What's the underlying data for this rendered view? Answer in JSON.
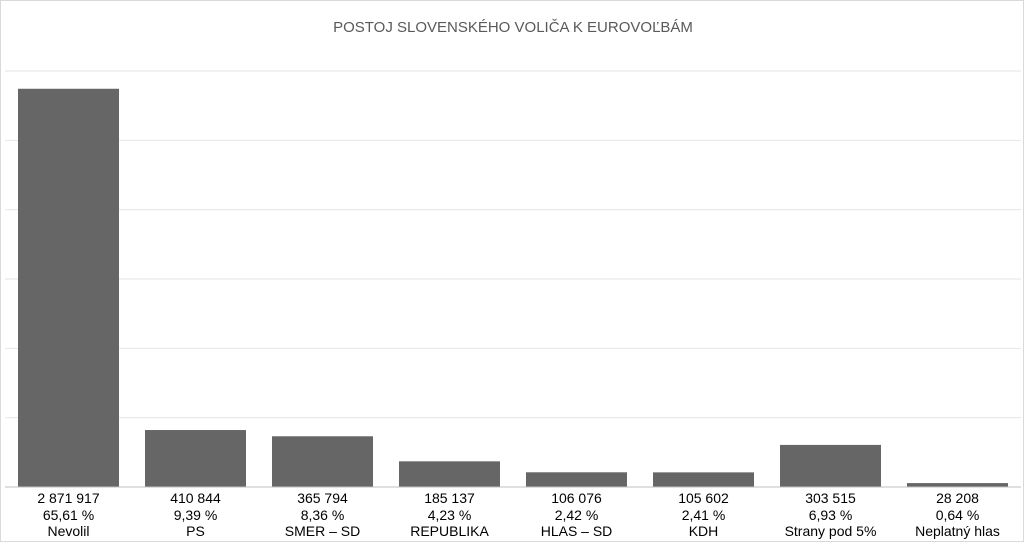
{
  "chart_data": {
    "type": "bar",
    "title": "POSTOJ SLOVENSKÉHO VOLIČA K EUROVOĽBÁM",
    "xlabel": "",
    "ylabel": "",
    "categories": [
      "Nevolil",
      "PS",
      "SMER – SD",
      "REPUBLIKA",
      "HLAS – SD",
      "KDH",
      "Strany pod 5%",
      "Neplatný hlas"
    ],
    "series": [
      {
        "values": [
          2871917,
          410844,
          365794,
          185137,
          106076,
          105602,
          303515,
          28208
        ],
        "value_labels": [
          "2 871 917",
          "410 844",
          "365 794",
          "185 137",
          "106 076",
          "105 602",
          "303 515",
          "28 208"
        ],
        "percent_labels": [
          "65,61 %",
          "9,39 %",
          "8,36 %",
          "4,23 %",
          "2,42 %",
          "2,41 %",
          "6,93 %",
          "0,64 %"
        ]
      }
    ],
    "ylim": [
      0,
      3000000
    ],
    "grid": true,
    "legend": "none",
    "bar_color": "#666666",
    "grid_color": "#e6e6e6"
  }
}
